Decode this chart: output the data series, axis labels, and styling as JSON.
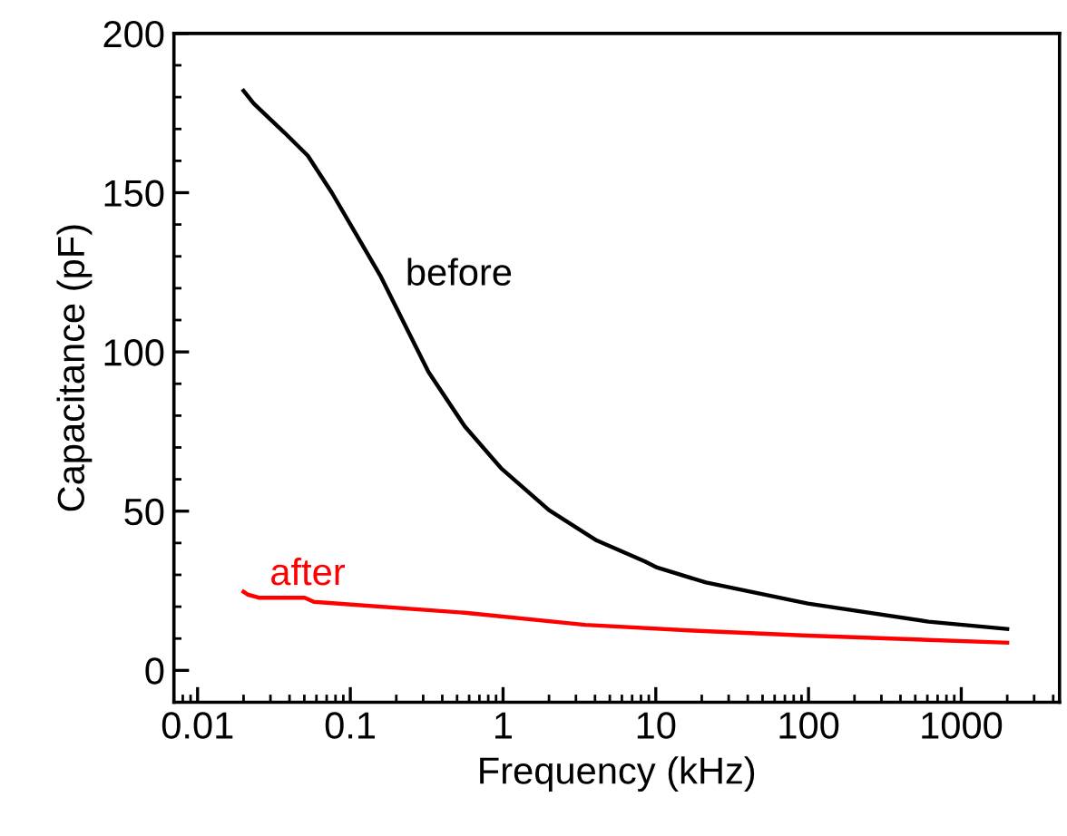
{
  "chart_data": {
    "type": "line",
    "xlabel": "Frequency (kHz)",
    "ylabel": "Capacitance (pF)",
    "log": "x",
    "xlim": [
      0.007,
      4400
    ],
    "xticks": [
      0.01,
      0.1,
      1,
      10,
      100,
      1000
    ],
    "ylim": [
      -10,
      200
    ],
    "yticks": [
      0,
      50,
      100,
      150,
      200
    ],
    "grid": false,
    "legend": false,
    "series": [
      {
        "name": "before",
        "color": "#000000",
        "x": [
          0.02,
          0.0233,
          0.0306,
          0.0368,
          0.0527,
          0.0757,
          0.109,
          0.157,
          0.225,
          0.325,
          0.56,
          0.97,
          2.0,
          4.1,
          8.5,
          10.2,
          21.3,
          99,
          611,
          2000
        ],
        "values": [
          182,
          178,
          172.6,
          169,
          161.6,
          150,
          137,
          124,
          109,
          93.7,
          76.7,
          63.5,
          50.3,
          40.8,
          34.2,
          32.3,
          27.6,
          21,
          15.3,
          13
        ]
      },
      {
        "name": "after",
        "color": "#ff0000",
        "x": [
          0.02,
          0.0213,
          0.0255,
          0.0503,
          0.0577,
          0.56,
          3.45,
          17.6,
          99,
          2000
        ],
        "values": [
          24.7,
          23.8,
          22.8,
          22.8,
          21.5,
          18.1,
          14.3,
          12.5,
          10.9,
          8.7
        ]
      }
    ]
  }
}
